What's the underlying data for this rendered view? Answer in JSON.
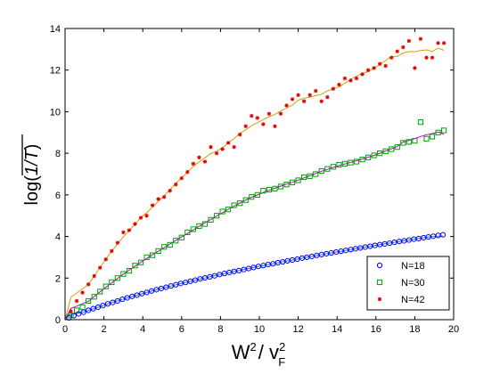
{
  "chart_data": {
    "type": "scatter",
    "title": "",
    "xlabel": {
      "base": "W",
      "sup1": "2",
      "slash": "/ v",
      "sup2": "2",
      "sub": "F"
    },
    "ylabel": {
      "prefix": "log(",
      "inner": "1/T",
      "suffix": ")"
    },
    "xlim": [
      0,
      20
    ],
    "ylim": [
      0,
      14
    ],
    "xticks": [
      "0",
      "2",
      "4",
      "6",
      "8",
      "10",
      "12",
      "14",
      "16",
      "18",
      "20"
    ],
    "yticks": [
      "0",
      "2",
      "4",
      "6",
      "8",
      "10",
      "12",
      "14"
    ],
    "grid": false,
    "legend_position": "bottom-right",
    "series": [
      {
        "name": "N=18",
        "marker": "circle",
        "color": "#0000ff",
        "fit_color": "#1e78d0",
        "x": [
          0.2,
          0.45,
          0.7,
          0.95,
          1.2,
          1.45,
          1.7,
          1.95,
          2.2,
          2.45,
          2.7,
          2.95,
          3.2,
          3.45,
          3.7,
          3.95,
          4.2,
          4.45,
          4.7,
          4.95,
          5.2,
          5.45,
          5.7,
          5.95,
          6.2,
          6.45,
          6.7,
          6.95,
          7.2,
          7.45,
          7.7,
          7.95,
          8.2,
          8.45,
          8.7,
          8.95,
          9.2,
          9.45,
          9.7,
          9.95,
          10.2,
          10.45,
          10.7,
          10.95,
          11.2,
          11.45,
          11.7,
          11.95,
          12.2,
          12.45,
          12.7,
          12.95,
          13.2,
          13.45,
          13.7,
          13.95,
          14.2,
          14.45,
          14.7,
          14.95,
          15.2,
          15.45,
          15.7,
          15.95,
          16.2,
          16.45,
          16.7,
          16.95,
          17.2,
          17.45,
          17.7,
          17.95,
          18.2,
          18.45,
          18.7,
          18.95,
          19.2,
          19.45
        ],
        "y": [
          0.09,
          0.19,
          0.28,
          0.36,
          0.45,
          0.53,
          0.6,
          0.68,
          0.76,
          0.83,
          0.9,
          0.98,
          1.05,
          1.12,
          1.18,
          1.25,
          1.31,
          1.38,
          1.44,
          1.5,
          1.56,
          1.62,
          1.68,
          1.74,
          1.79,
          1.85,
          1.9,
          1.96,
          2.01,
          2.06,
          2.11,
          2.17,
          2.22,
          2.27,
          2.32,
          2.36,
          2.41,
          2.46,
          2.51,
          2.56,
          2.6,
          2.65,
          2.69,
          2.74,
          2.78,
          2.83,
          2.87,
          2.91,
          2.96,
          3.0,
          3.04,
          3.09,
          3.13,
          3.17,
          3.21,
          3.25,
          3.29,
          3.33,
          3.37,
          3.41,
          3.45,
          3.49,
          3.53,
          3.57,
          3.61,
          3.64,
          3.68,
          3.72,
          3.76,
          3.79,
          3.83,
          3.87,
          3.9,
          3.94,
          3.98,
          4.01,
          4.05,
          4.08
        ]
      },
      {
        "name": "N=30",
        "marker": "square",
        "color": "#00a000",
        "fit_color": "#c000c0",
        "x": [
          0.3,
          0.6,
          0.9,
          1.2,
          1.5,
          1.8,
          2.1,
          2.4,
          2.7,
          3.0,
          3.3,
          3.6,
          3.9,
          4.2,
          4.5,
          4.8,
          5.1,
          5.4,
          5.7,
          6.0,
          6.3,
          6.6,
          6.9,
          7.2,
          7.5,
          7.8,
          8.1,
          8.4,
          8.7,
          9.0,
          9.3,
          9.6,
          9.9,
          10.2,
          10.5,
          10.8,
          11.1,
          11.4,
          11.7,
          12.0,
          12.3,
          12.6,
          12.9,
          13.2,
          13.5,
          13.8,
          14.1,
          14.4,
          14.7,
          15.0,
          15.3,
          15.6,
          15.9,
          16.2,
          16.5,
          16.8,
          17.1,
          17.4,
          17.7,
          18.0,
          18.3,
          18.6,
          18.9,
          19.2,
          19.5
        ],
        "y": [
          0.2,
          0.45,
          0.6,
          0.9,
          1.1,
          1.35,
          1.6,
          1.8,
          2.0,
          2.2,
          2.35,
          2.6,
          2.75,
          3.0,
          3.1,
          3.3,
          3.5,
          3.6,
          3.8,
          3.95,
          4.2,
          4.35,
          4.5,
          4.6,
          4.8,
          5.0,
          5.2,
          5.3,
          5.5,
          5.6,
          5.75,
          5.9,
          6.0,
          6.2,
          6.25,
          6.3,
          6.4,
          6.5,
          6.6,
          6.7,
          6.85,
          6.9,
          7.0,
          7.15,
          7.25,
          7.35,
          7.45,
          7.5,
          7.55,
          7.6,
          7.7,
          7.8,
          7.9,
          8.0,
          8.1,
          8.2,
          8.3,
          8.5,
          8.55,
          8.6,
          9.5,
          8.7,
          8.8,
          9.0,
          9.1
        ]
      },
      {
        "name": "N=42",
        "marker": "star",
        "color": "#e00000",
        "fit_color": "#d0a000",
        "x": [
          0.3,
          0.6,
          0.9,
          1.2,
          1.5,
          1.8,
          2.1,
          2.4,
          2.7,
          3.0,
          3.3,
          3.6,
          3.9,
          4.2,
          4.5,
          4.8,
          5.1,
          5.4,
          5.7,
          6.0,
          6.3,
          6.6,
          6.9,
          7.2,
          7.5,
          7.8,
          8.1,
          8.4,
          8.7,
          9.0,
          9.3,
          9.6,
          9.9,
          10.2,
          10.5,
          10.8,
          11.1,
          11.4,
          11.7,
          12.0,
          12.3,
          12.6,
          12.9,
          13.2,
          13.5,
          13.8,
          14.1,
          14.4,
          14.7,
          15.0,
          15.3,
          15.6,
          15.9,
          16.2,
          16.5,
          16.8,
          17.1,
          17.4,
          17.7,
          18.0,
          18.3,
          18.6,
          18.9,
          19.2,
          19.5
        ],
        "y": [
          0.4,
          0.9,
          1.3,
          1.7,
          2.1,
          2.5,
          2.9,
          3.3,
          3.7,
          4.2,
          4.3,
          4.6,
          4.9,
          5.0,
          5.5,
          5.8,
          5.9,
          6.2,
          6.5,
          6.8,
          7.1,
          7.5,
          7.8,
          7.6,
          8.3,
          8.0,
          8.2,
          8.5,
          8.3,
          8.9,
          9.3,
          9.8,
          9.7,
          9.4,
          9.9,
          9.3,
          9.9,
          10.3,
          10.6,
          10.8,
          10.5,
          10.8,
          11.0,
          10.5,
          10.7,
          11.1,
          11.3,
          11.6,
          11.5,
          11.6,
          11.8,
          12.0,
          12.1,
          12.3,
          12.2,
          12.6,
          12.9,
          13.1,
          13.4,
          12.1,
          13.5,
          12.6,
          12.6,
          13.3,
          13.3
        ]
      }
    ]
  }
}
